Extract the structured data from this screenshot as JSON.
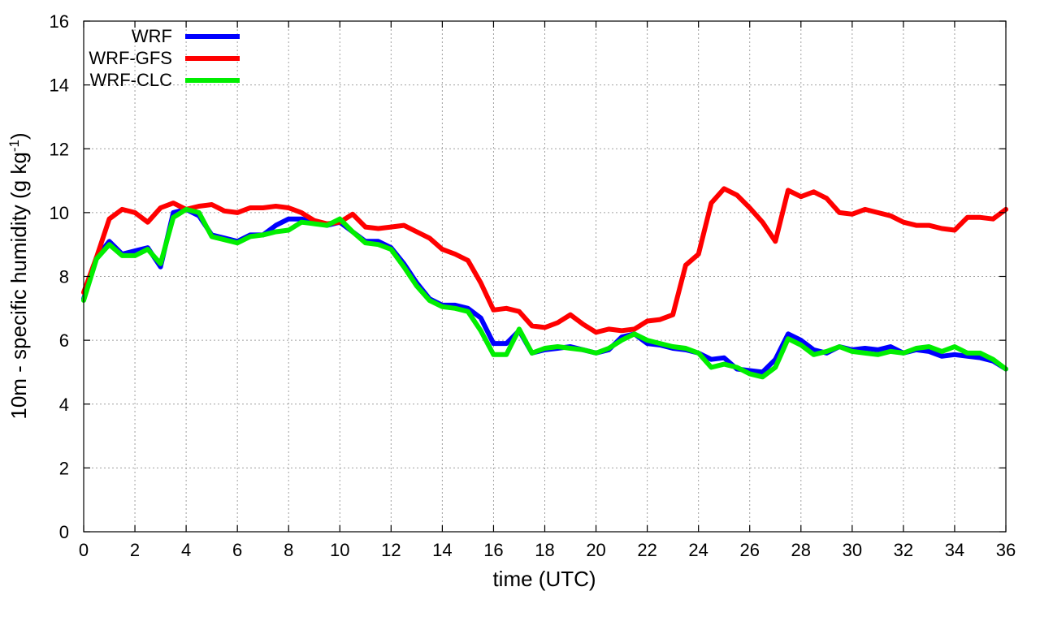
{
  "chart_data": {
    "type": "line",
    "title": "",
    "xlabel": "time (UTC)",
    "ylabel_main": "10m - specific humidity (g kg",
    "ylabel_sup": "-1",
    "ylabel_close": ")",
    "xlim": [
      0,
      36
    ],
    "ylim": [
      0,
      16
    ],
    "xticks": [
      0,
      2,
      4,
      6,
      8,
      10,
      12,
      14,
      16,
      18,
      20,
      22,
      24,
      26,
      28,
      30,
      32,
      34,
      36
    ],
    "yticks": [
      0,
      2,
      4,
      6,
      8,
      10,
      12,
      14,
      16
    ],
    "grid": true,
    "legend_position": "top-left",
    "x": [
      0,
      0.5,
      1,
      1.5,
      2,
      2.5,
      3,
      3.5,
      4,
      4.5,
      5,
      5.5,
      6,
      6.5,
      7,
      7.5,
      8,
      8.5,
      9,
      9.5,
      10,
      10.5,
      11,
      11.5,
      12,
      12.5,
      13,
      13.5,
      14,
      14.5,
      15,
      15.5,
      16,
      16.5,
      17,
      17.5,
      18,
      18.5,
      19,
      19.5,
      20,
      20.5,
      21,
      21.5,
      22,
      22.5,
      23,
      23.5,
      24,
      24.5,
      25,
      25.5,
      26,
      26.5,
      27,
      27.5,
      28,
      28.5,
      29,
      29.5,
      30,
      30.5,
      31,
      31.5,
      32,
      32.5,
      33,
      33.5,
      34,
      34.5,
      35,
      35.5,
      36
    ],
    "series": [
      {
        "name": "WRF",
        "color": "#0000ff",
        "values": [
          7.3,
          8.6,
          9.1,
          8.7,
          8.8,
          8.9,
          8.3,
          10.0,
          10.1,
          9.9,
          9.3,
          9.2,
          9.1,
          9.3,
          9.3,
          9.6,
          9.8,
          9.8,
          9.7,
          9.6,
          9.7,
          9.4,
          9.1,
          9.1,
          8.9,
          8.4,
          7.8,
          7.3,
          7.1,
          7.1,
          7.0,
          6.7,
          5.9,
          5.9,
          6.3,
          5.6,
          5.7,
          5.75,
          5.8,
          5.7,
          5.6,
          5.7,
          6.1,
          6.2,
          5.9,
          5.85,
          5.75,
          5.7,
          5.6,
          5.4,
          5.45,
          5.1,
          5.05,
          5.0,
          5.4,
          6.2,
          6.0,
          5.7,
          5.6,
          5.8,
          5.7,
          5.75,
          5.7,
          5.8,
          5.6,
          5.7,
          5.65,
          5.5,
          5.55,
          5.5,
          5.45,
          5.35,
          5.1
        ]
      },
      {
        "name": "WRF-GFS",
        "color": "#ff0000",
        "values": [
          7.5,
          8.6,
          9.8,
          10.1,
          10.0,
          9.7,
          10.15,
          10.3,
          10.1,
          10.2,
          10.25,
          10.05,
          10.0,
          10.15,
          10.15,
          10.2,
          10.15,
          10.0,
          9.75,
          9.65,
          9.7,
          9.95,
          9.55,
          9.5,
          9.55,
          9.6,
          9.4,
          9.2,
          8.85,
          8.7,
          8.5,
          7.8,
          6.95,
          7.0,
          6.9,
          6.45,
          6.4,
          6.55,
          6.8,
          6.5,
          6.25,
          6.35,
          6.3,
          6.35,
          6.6,
          6.65,
          6.8,
          8.35,
          8.7,
          10.3,
          10.75,
          10.55,
          10.15,
          9.7,
          9.1,
          10.7,
          10.5,
          10.65,
          10.45,
          10.0,
          9.95,
          10.1,
          10.0,
          9.9,
          9.7,
          9.6,
          9.6,
          9.5,
          9.45,
          9.85,
          9.85,
          9.8,
          10.1
        ]
      },
      {
        "name": "WRF-CLC",
        "color": "#00ee00",
        "values": [
          7.25,
          8.55,
          9.0,
          8.65,
          8.65,
          8.85,
          8.4,
          9.85,
          10.1,
          10.0,
          9.25,
          9.15,
          9.05,
          9.25,
          9.3,
          9.4,
          9.45,
          9.7,
          9.65,
          9.6,
          9.8,
          9.4,
          9.05,
          9.0,
          8.85,
          8.3,
          7.7,
          7.25,
          7.05,
          7.0,
          6.9,
          6.3,
          5.55,
          5.55,
          6.35,
          5.6,
          5.75,
          5.8,
          5.75,
          5.7,
          5.6,
          5.75,
          6.0,
          6.2,
          6.0,
          5.9,
          5.8,
          5.75,
          5.6,
          5.15,
          5.25,
          5.15,
          4.95,
          4.85,
          5.15,
          6.05,
          5.85,
          5.55,
          5.65,
          5.8,
          5.65,
          5.6,
          5.55,
          5.65,
          5.6,
          5.75,
          5.8,
          5.65,
          5.8,
          5.6,
          5.6,
          5.4,
          5.1
        ]
      }
    ]
  }
}
